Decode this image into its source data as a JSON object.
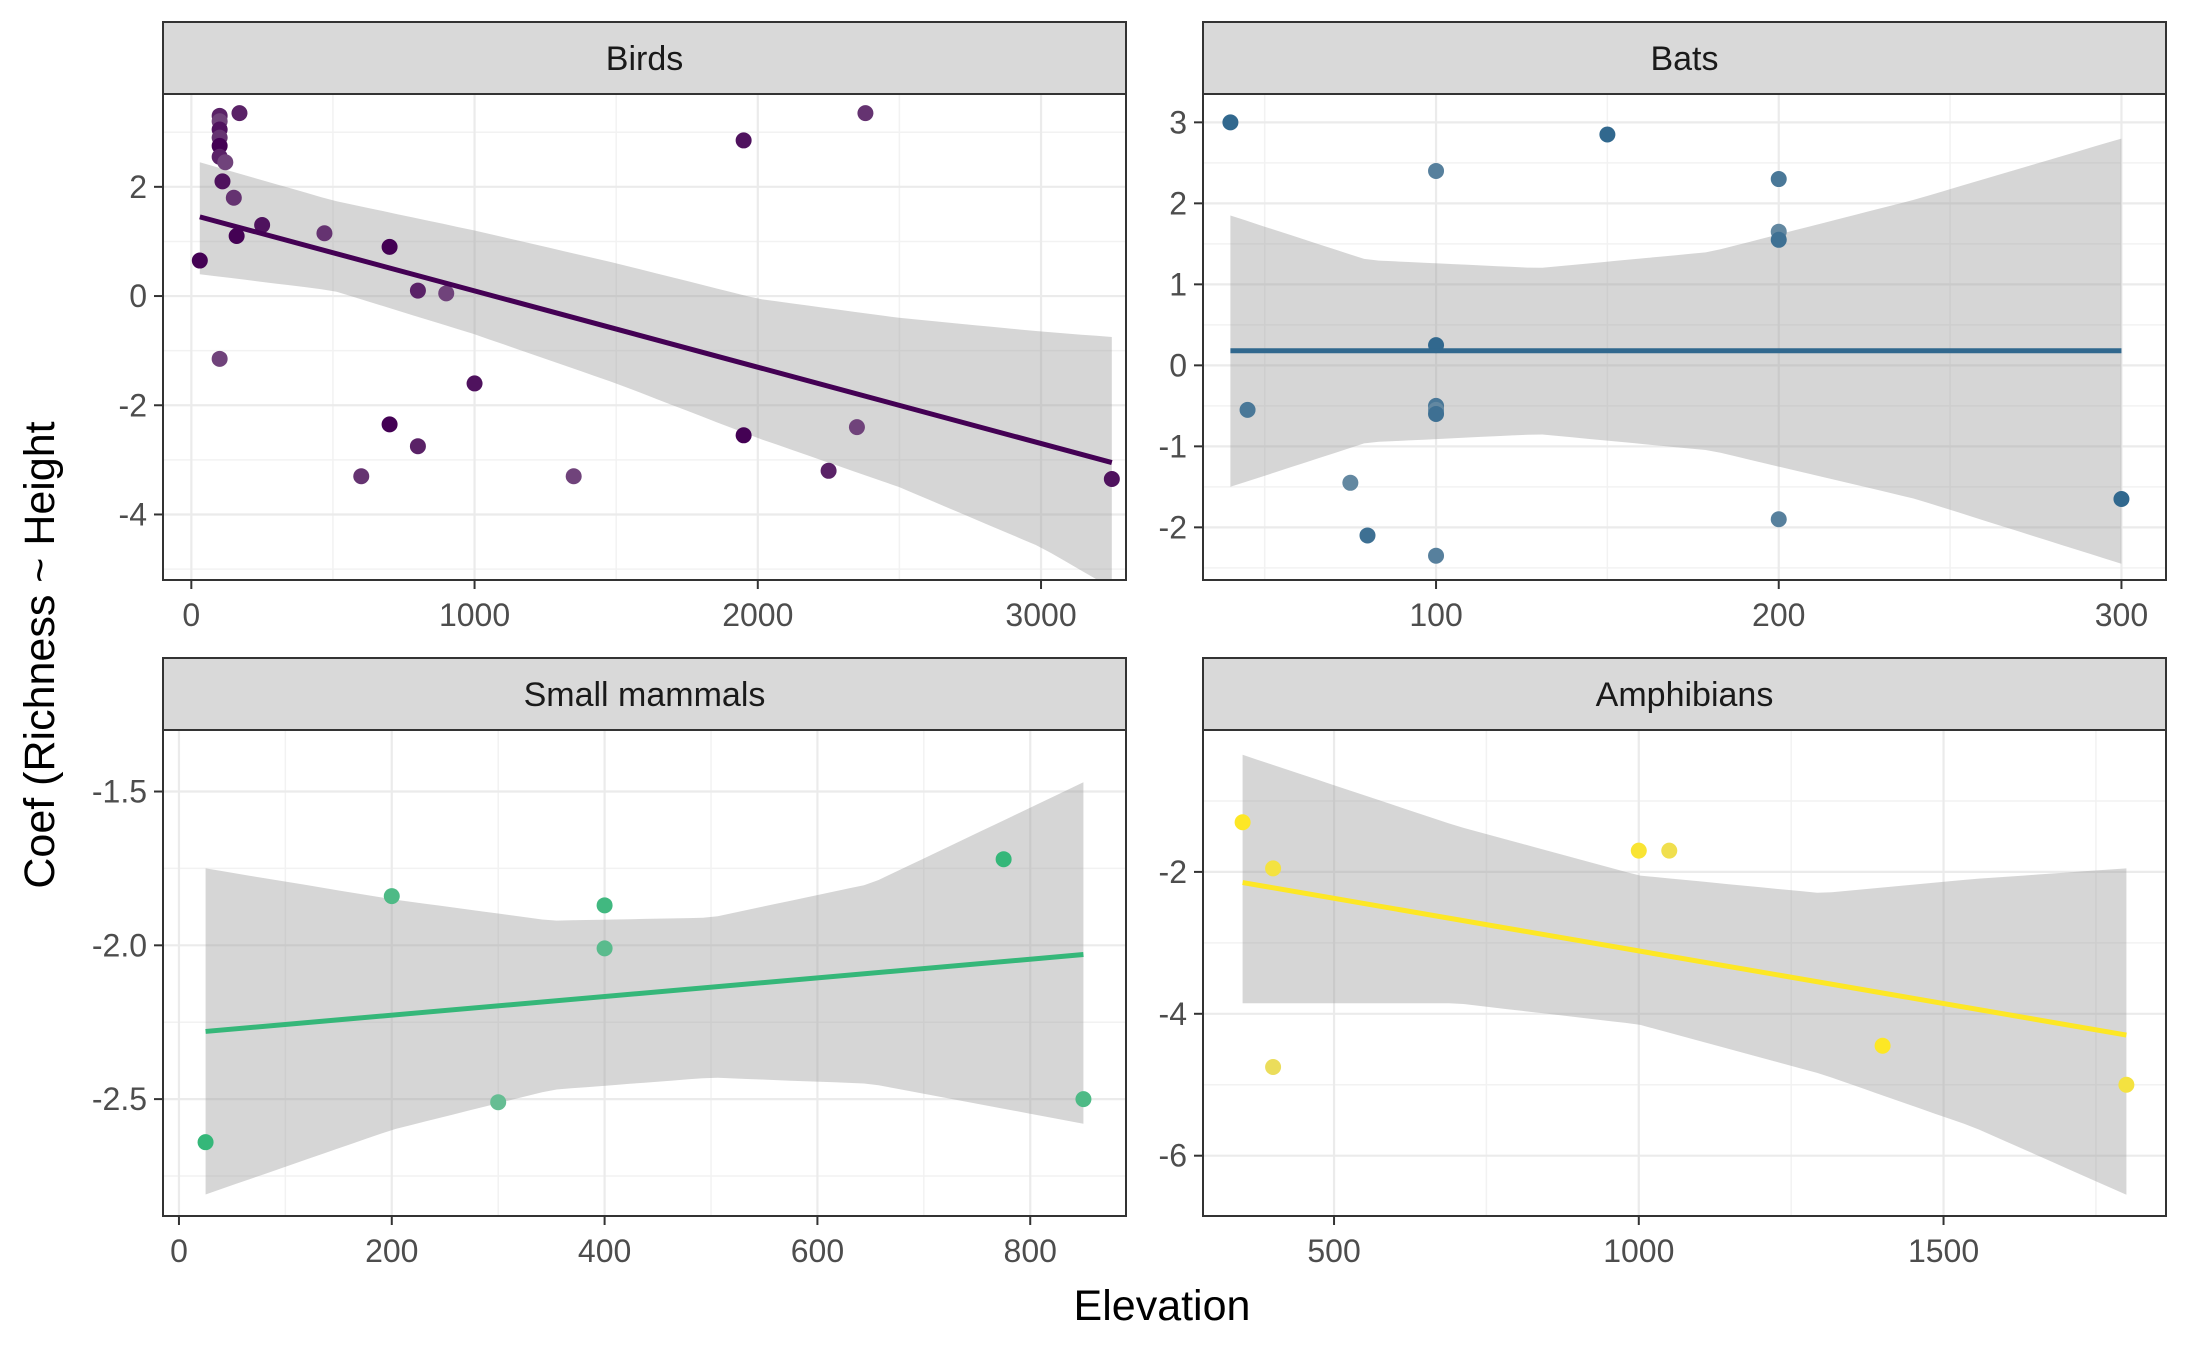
{
  "xlabel": "Elevation",
  "ylabel": "Coef (Richness ~ Height",
  "chart_data": [
    {
      "type": "scatter",
      "title": "Birds",
      "color": "#440154",
      "xlim": [
        -100,
        3300
      ],
      "ylim": [
        -5.2,
        3.7
      ],
      "xticks": [
        0,
        1000,
        2000,
        3000
      ],
      "xtick_labels": [
        "0",
        "1000",
        "2000",
        "3000"
      ],
      "yticks": [
        2,
        0,
        -2,
        -4
      ],
      "ytick_labels": [
        "2",
        "0",
        "-2",
        "-4"
      ],
      "points": [
        [
          30,
          0.65
        ],
        [
          100,
          3.3
        ],
        [
          100,
          3.2
        ],
        [
          100,
          3.05
        ],
        [
          100,
          2.9
        ],
        [
          100,
          2.75
        ],
        [
          100,
          2.55
        ],
        [
          120,
          2.45
        ],
        [
          110,
          2.1
        ],
        [
          150,
          1.8
        ],
        [
          160,
          1.1
        ],
        [
          170,
          3.35
        ],
        [
          100,
          -1.15
        ],
        [
          250,
          1.3
        ],
        [
          470,
          1.15
        ],
        [
          700,
          0.9
        ],
        [
          800,
          0.1
        ],
        [
          900,
          0.05
        ],
        [
          1000,
          -1.6
        ],
        [
          600,
          -3.3
        ],
        [
          700,
          -2.35
        ],
        [
          800,
          -2.75
        ],
        [
          1350,
          -3.3
        ],
        [
          1950,
          2.85
        ],
        [
          2380,
          3.35
        ],
        [
          1950,
          -2.55
        ],
        [
          2250,
          -3.2
        ],
        [
          2350,
          -2.4
        ],
        [
          3250,
          -3.35
        ]
      ],
      "fit": {
        "x": [
          30,
          3250
        ],
        "y": [
          1.45,
          -3.05
        ]
      },
      "band": {
        "x": [
          30,
          500,
          1000,
          1500,
          2000,
          2500,
          3000,
          3250
        ],
        "lower": [
          0.4,
          0.1,
          -0.7,
          -1.6,
          -2.6,
          -3.5,
          -4.6,
          -5.35
        ],
        "upper": [
          2.45,
          1.75,
          1.2,
          0.6,
          -0.05,
          -0.4,
          -0.65,
          -0.75
        ]
      }
    },
    {
      "type": "scatter",
      "title": "Bats",
      "color": "#31688e",
      "xlim": [
        32,
        313
      ],
      "ylim": [
        -2.65,
        3.35
      ],
      "xticks": [
        100,
        200,
        300
      ],
      "xtick_labels": [
        "100",
        "200",
        "300"
      ],
      "yticks": [
        3,
        2,
        1,
        0,
        -1,
        -2
      ],
      "ytick_labels": [
        "3",
        "2",
        "1",
        "0",
        "-1",
        "-2"
      ],
      "points": [
        [
          40,
          3.0
        ],
        [
          45,
          -0.55
        ],
        [
          75,
          -1.45
        ],
        [
          80,
          -2.1
        ],
        [
          100,
          2.4
        ],
        [
          100,
          0.25
        ],
        [
          100,
          -0.5
        ],
        [
          100,
          -0.55
        ],
        [
          100,
          -0.6
        ],
        [
          100,
          -2.35
        ],
        [
          150,
          2.85
        ],
        [
          200,
          2.3
        ],
        [
          200,
          1.65
        ],
        [
          200,
          1.55
        ],
        [
          200,
          -1.9
        ],
        [
          300,
          -1.65
        ]
      ],
      "fit": {
        "x": [
          40,
          300
        ],
        "y": [
          0.18,
          0.18
        ]
      },
      "band": {
        "x": [
          40,
          80,
          130,
          180,
          240,
          300
        ],
        "lower": [
          -1.5,
          -0.95,
          -0.85,
          -1.05,
          -1.65,
          -2.45
        ],
        "upper": [
          1.85,
          1.3,
          1.2,
          1.4,
          2.05,
          2.8
        ]
      }
    },
    {
      "type": "scatter",
      "title": "Small mammals",
      "color": "#35b779",
      "xlim": [
        -15,
        890
      ],
      "ylim": [
        -2.88,
        -1.3
      ],
      "xticks": [
        0,
        200,
        400,
        600,
        800
      ],
      "xtick_labels": [
        "0",
        "200",
        "400",
        "600",
        "800"
      ],
      "yticks": [
        -1.5,
        -2.0,
        -2.5
      ],
      "ytick_labels": [
        "-1.5",
        "-2.0",
        "-2.5"
      ],
      "points": [
        [
          25,
          -2.64
        ],
        [
          200,
          -1.84
        ],
        [
          300,
          -2.51
        ],
        [
          400,
          -1.87
        ],
        [
          400,
          -2.01
        ],
        [
          775,
          -1.72
        ],
        [
          850,
          -2.5
        ]
      ],
      "fit": {
        "x": [
          25,
          850
        ],
        "y": [
          -2.28,
          -2.03
        ]
      },
      "band": {
        "x": [
          25,
          200,
          350,
          500,
          650,
          850
        ],
        "lower": [
          -2.81,
          -2.6,
          -2.47,
          -2.43,
          -2.45,
          -2.58
        ],
        "upper": [
          -1.75,
          -1.85,
          -1.92,
          -1.91,
          -1.8,
          -1.47
        ]
      }
    },
    {
      "type": "scatter",
      "title": "Amphibians",
      "color": "#fde725",
      "xlim": [
        285,
        1865
      ],
      "ylim": [
        -6.85,
        0.0
      ],
      "xticks": [
        500,
        1000,
        1500
      ],
      "xtick_labels": [
        "500",
        "1000",
        "1500"
      ],
      "yticks": [
        -2,
        -4,
        -6
      ],
      "ytick_labels": [
        "-2",
        "-4",
        "-6"
      ],
      "points": [
        [
          350,
          -1.3
        ],
        [
          400,
          -1.95
        ],
        [
          400,
          -4.75
        ],
        [
          1000,
          -1.7
        ],
        [
          1050,
          -1.7
        ],
        [
          1400,
          -4.45
        ],
        [
          1800,
          -5.0
        ]
      ],
      "fit": {
        "x": [
          350,
          1800
        ],
        "y": [
          -2.15,
          -4.3
        ]
      },
      "band": {
        "x": [
          350,
          700,
          1000,
          1300,
          1550,
          1800
        ],
        "lower": [
          -3.85,
          -3.85,
          -4.15,
          -4.85,
          -5.6,
          -6.55
        ],
        "upper": [
          -0.35,
          -1.35,
          -2.05,
          -2.3,
          -2.1,
          -1.95
        ]
      }
    }
  ]
}
